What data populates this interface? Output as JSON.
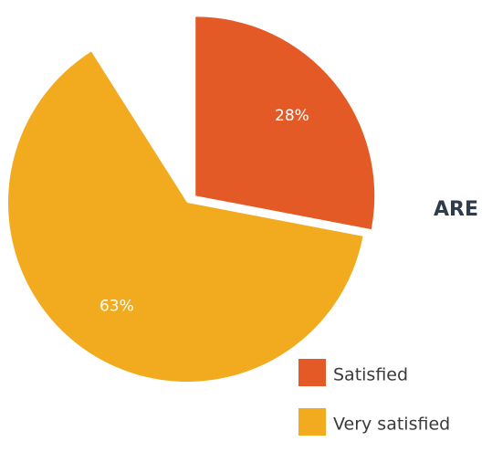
{
  "chart_data": {
    "type": "pie",
    "title": "ARE",
    "categories": [
      "Satisfied",
      "Very satisfied"
    ],
    "values": [
      28,
      63
    ],
    "value_labels": [
      "28%",
      "63%"
    ],
    "colors": [
      "#e35a26",
      "#f2ab1e"
    ],
    "explode": [
      true,
      false
    ]
  }
}
